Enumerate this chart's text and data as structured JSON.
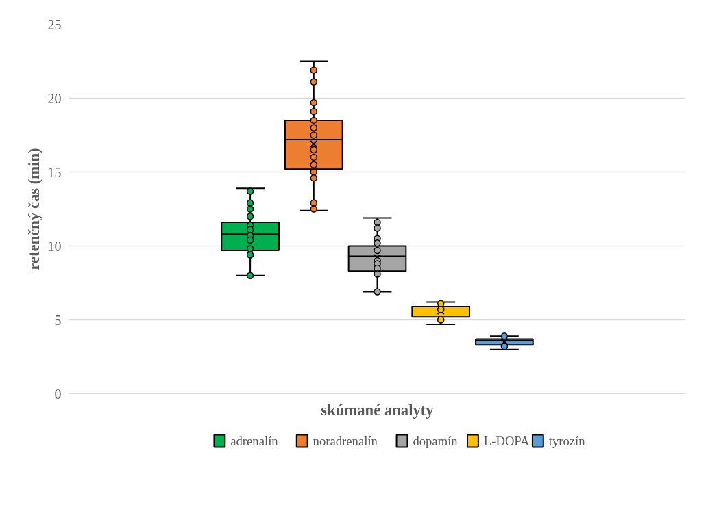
{
  "chart_data": {
    "type": "box",
    "xlabel": "skúmané analyty",
    "ylabel": "retenčný čas (min)",
    "categories": [
      null
    ],
    "ylim": [
      0,
      25
    ],
    "yticks": [
      0,
      5,
      10,
      15,
      20,
      25
    ],
    "grid": "y",
    "legend": "bottom",
    "tick_labels": "y",
    "series": [
      {
        "name": "adrenalín",
        "color": "#00b050",
        "boxes": [
          {
            "low": 8.0,
            "q1": 9.7,
            "median": 10.8,
            "q3": 11.6,
            "high": 13.9,
            "mean": 10.6
          }
        ]
      },
      {
        "name": "noradrenalín",
        "color": "#ed7d31",
        "boxes": [
          {
            "low": 12.4,
            "q1": 15.2,
            "median": 17.2,
            "q3": 18.5,
            "high": 22.5,
            "mean": 16.9
          }
        ]
      },
      {
        "name": "dopamín",
        "color": "#a5a5a5",
        "boxes": [
          {
            "low": 6.9,
            "q1": 8.3,
            "median": 9.3,
            "q3": 10.0,
            "high": 11.9,
            "mean": 9.2
          }
        ]
      },
      {
        "name": "L-DOPA",
        "color": "#ffc000",
        "boxes": [
          {
            "low": 4.7,
            "q1": 5.2,
            "median": 5.9,
            "q3": 5.9,
            "high": 6.2,
            "mean": 5.6
          }
        ]
      },
      {
        "name": "tyrozín",
        "color": "#5b9bd5",
        "boxes": [
          {
            "low": 3.0,
            "q1": 3.3,
            "median": 3.6,
            "q3": 3.7,
            "high": 3.9,
            "mean": 3.5
          }
        ]
      },
      {
        "type": "scatter",
        "color": "#00b050",
        "x": [
          null,
          null,
          null,
          null,
          null,
          null,
          null,
          null,
          null,
          null,
          null
        ],
        "values": [
          13.7,
          12.9,
          12.5,
          12.0,
          11.4,
          11.1,
          10.7,
          10.4,
          9.8,
          9.4,
          8.0
        ]
      },
      {
        "type": "scatter",
        "color": "#ed7d31",
        "x": [
          null,
          null,
          null,
          null,
          null,
          null,
          null,
          null,
          null,
          null,
          null,
          null,
          null,
          null
        ],
        "values": [
          21.9,
          21.1,
          19.7,
          19.1,
          18.5,
          18.0,
          17.5,
          16.5,
          16.0,
          15.5,
          15.0,
          14.6,
          12.9,
          12.5
        ]
      },
      {
        "type": "scatter",
        "color": "#a5a5a5",
        "x": [
          null,
          null,
          null,
          null,
          null,
          null,
          null,
          null,
          null,
          null
        ],
        "values": [
          11.6,
          11.2,
          10.5,
          10.2,
          9.7,
          9.0,
          8.8,
          8.5,
          8.1,
          6.9
        ]
      },
      {
        "type": "scatter",
        "color": "#ffc000",
        "x": [
          null,
          null,
          null
        ],
        "values": [
          6.1,
          5.7,
          5.0
        ]
      },
      {
        "type": "scatter",
        "color": "#5b9bd5",
        "x": [
          null,
          null
        ],
        "values": [
          3.9,
          3.2
        ]
      }
    ]
  }
}
